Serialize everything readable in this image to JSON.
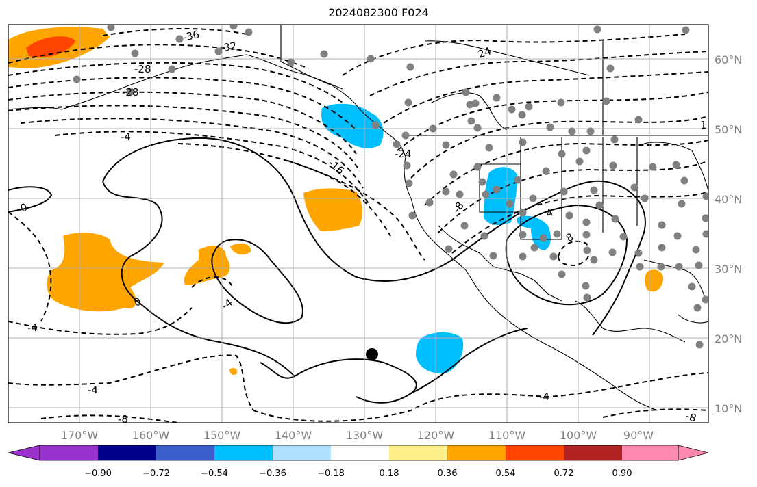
{
  "title": "2024082300 F024",
  "lat_labels": [
    "60°N",
    "50°N",
    "40°N",
    "30°N",
    "20°N",
    "10°N"
  ],
  "lon_labels": [
    "170°W",
    "160°W",
    "150°W",
    "140°W",
    "130°W",
    "120°W",
    "110°W",
    "100°W",
    "90°W"
  ],
  "colorbar": {
    "tick_labels": [
      "−0.90",
      "−0.72",
      "−0.54",
      "−0.36",
      "−0.18",
      "0.18",
      "0.36",
      "0.54",
      "0.72",
      "0.90"
    ],
    "colors": [
      "#9932cc",
      "#00008b",
      "#3a5fcd",
      "#00bfff",
      "#b0e2ff",
      "#ffffff",
      "#fff08a",
      "#ffa500",
      "#ff4500",
      "#b22222",
      "#ff88b0"
    ]
  },
  "contour_labels": [
    "-36",
    "-32",
    "-28",
    "-28",
    "-24",
    "-16",
    "-8",
    "-4",
    "-4",
    "-4",
    "-4",
    "0",
    "0",
    "-4",
    "4",
    "8",
    "-8",
    "24",
    "-8",
    "1"
  ],
  "colors": {
    "positive_fill": "#ffa500",
    "strong_positive_fill": "#ff4500",
    "negative_fill": "#00bfff",
    "station_dot": "#808080",
    "contour": "#000000"
  }
}
